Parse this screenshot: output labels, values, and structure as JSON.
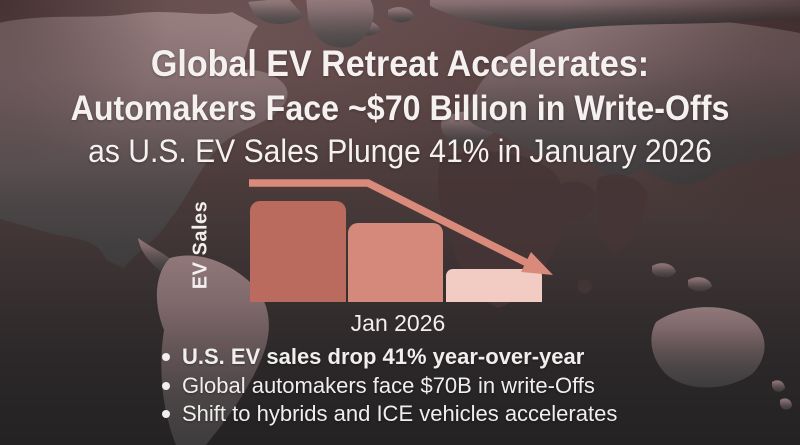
{
  "header": {
    "title_line1": "Global EV Retreat Accelerates:",
    "title_line2": "Automakers Face ~$70 Billion in Write-Offs",
    "title_line3": "as U.S. EV Sales Plunge 41% in January 2026"
  },
  "chart_data": {
    "type": "bar",
    "title": "",
    "ylabel": "EV Sales",
    "xlabel": "Jan 2026",
    "categories": [
      "",
      "",
      ""
    ],
    "values": [
      100,
      78,
      33
    ],
    "ylim": [
      0,
      100
    ],
    "gridlines": false,
    "legend": false,
    "bar_colors": [
      "#bb6b5e",
      "#d5897b",
      "#f2cbc3"
    ],
    "annotations": [
      "declining trend arrow from first bar down to last bar"
    ],
    "arrow_color": "#d98a7b"
  },
  "bullets": {
    "items": [
      {
        "text": "U.S. EV sales drop 41% year-over-year",
        "bold": true
      },
      {
        "text": "Global automakers face $70B in write-Offs",
        "bold": false
      },
      {
        "text": "Shift to hybrids and ICE vehicles accelerates",
        "bold": false
      }
    ]
  },
  "colors": {
    "headline_text": "#f4f1f0",
    "body_text": "#f1eeee",
    "background_top": "#5e4646",
    "background_bottom": "#242223",
    "land_top": "#917879",
    "land_bottom": "#3e3c3d",
    "land_dark_silhouette": "#463536"
  }
}
